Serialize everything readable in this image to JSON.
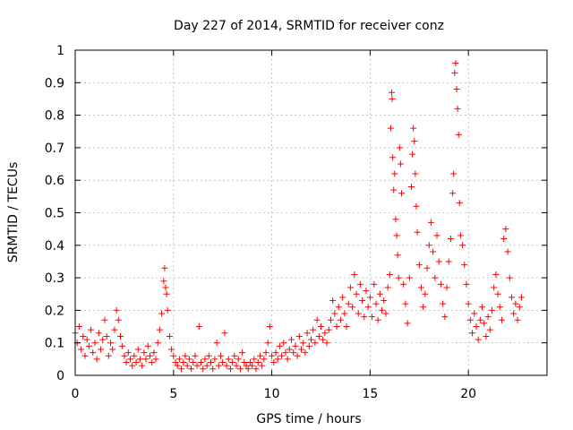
{
  "chart_data": {
    "type": "scatter",
    "title": "Day 227 of 2014, SRMTID for receiver conz",
    "xlabel": "GPS time / hours",
    "ylabel": "SRMTID / TECUs",
    "xlim": [
      0,
      24
    ],
    "ylim": [
      0,
      1
    ],
    "xticks": [
      0,
      5,
      10,
      15,
      20
    ],
    "xtick_labels": [
      "0",
      "5",
      "10",
      "15",
      "20"
    ],
    "yticks": [
      0,
      0.1,
      0.2,
      0.3,
      0.4,
      0.5,
      0.6,
      0.7,
      0.8,
      0.9,
      1
    ],
    "ytick_labels": [
      "0",
      "0.1",
      "0.2",
      "0.3",
      "0.4",
      "0.5",
      "0.6",
      "0.7",
      "0.8",
      "0.9",
      "1"
    ],
    "grid": true,
    "marker": "+",
    "marker_color": "#ff0000",
    "series": [
      {
        "name": "SRMTID",
        "points": [
          [
            0.0,
            0.13
          ],
          [
            0.1,
            0.1
          ],
          [
            0.2,
            0.15
          ],
          [
            0.3,
            0.08
          ],
          [
            0.4,
            0.12
          ],
          [
            0.5,
            0.06
          ],
          [
            0.6,
            0.11
          ],
          [
            0.7,
            0.09
          ],
          [
            0.8,
            0.14
          ],
          [
            0.9,
            0.07
          ],
          [
            1.0,
            0.1
          ],
          [
            1.1,
            0.05
          ],
          [
            1.2,
            0.13
          ],
          [
            1.3,
            0.08
          ],
          [
            1.4,
            0.11
          ],
          [
            1.5,
            0.17
          ],
          [
            1.6,
            0.12
          ],
          [
            1.7,
            0.06
          ],
          [
            1.8,
            0.1
          ],
          [
            1.9,
            0.08
          ],
          [
            2.0,
            0.14
          ],
          [
            2.1,
            0.2
          ],
          [
            2.2,
            0.17
          ],
          [
            2.3,
            0.12
          ],
          [
            2.4,
            0.09
          ],
          [
            2.5,
            0.06
          ],
          [
            2.6,
            0.04
          ],
          [
            2.7,
            0.07
          ],
          [
            2.8,
            0.05
          ],
          [
            2.9,
            0.03
          ],
          [
            3.0,
            0.06
          ],
          [
            3.1,
            0.04
          ],
          [
            3.2,
            0.08
          ],
          [
            3.3,
            0.05
          ],
          [
            3.4,
            0.03
          ],
          [
            3.5,
            0.07
          ],
          [
            3.6,
            0.05
          ],
          [
            3.7,
            0.09
          ],
          [
            3.8,
            0.06
          ],
          [
            3.9,
            0.04
          ],
          [
            4.0,
            0.07
          ],
          [
            4.1,
            0.05
          ],
          [
            4.2,
            0.1
          ],
          [
            4.3,
            0.14
          ],
          [
            4.4,
            0.19
          ],
          [
            4.5,
            0.29
          ],
          [
            4.55,
            0.33
          ],
          [
            4.6,
            0.27
          ],
          [
            4.65,
            0.25
          ],
          [
            4.7,
            0.2
          ],
          [
            4.8,
            0.12
          ],
          [
            4.9,
            0.08
          ],
          [
            5.0,
            0.06
          ],
          [
            5.1,
            0.04
          ],
          [
            5.2,
            0.03
          ],
          [
            5.3,
            0.05
          ],
          [
            5.4,
            0.02
          ],
          [
            5.5,
            0.04
          ],
          [
            5.6,
            0.06
          ],
          [
            5.7,
            0.03
          ],
          [
            5.8,
            0.05
          ],
          [
            5.9,
            0.02
          ],
          [
            6.0,
            0.04
          ],
          [
            6.1,
            0.06
          ],
          [
            6.2,
            0.03
          ],
          [
            6.3,
            0.15
          ],
          [
            6.4,
            0.04
          ],
          [
            6.5,
            0.02
          ],
          [
            6.6,
            0.05
          ],
          [
            6.7,
            0.03
          ],
          [
            6.8,
            0.06
          ],
          [
            6.9,
            0.04
          ],
          [
            7.0,
            0.02
          ],
          [
            7.1,
            0.05
          ],
          [
            7.2,
            0.1
          ],
          [
            7.3,
            0.03
          ],
          [
            7.4,
            0.06
          ],
          [
            7.5,
            0.04
          ],
          [
            7.6,
            0.13
          ],
          [
            7.7,
            0.03
          ],
          [
            7.8,
            0.05
          ],
          [
            7.9,
            0.02
          ],
          [
            8.0,
            0.04
          ],
          [
            8.1,
            0.06
          ],
          [
            8.2,
            0.03
          ],
          [
            8.3,
            0.05
          ],
          [
            8.4,
            0.02
          ],
          [
            8.5,
            0.07
          ],
          [
            8.6,
            0.04
          ],
          [
            8.7,
            0.03
          ],
          [
            8.8,
            0.02
          ],
          [
            8.9,
            0.04
          ],
          [
            9.0,
            0.03
          ],
          [
            9.1,
            0.05
          ],
          [
            9.2,
            0.02
          ],
          [
            9.3,
            0.04
          ],
          [
            9.4,
            0.06
          ],
          [
            9.5,
            0.03
          ],
          [
            9.6,
            0.05
          ],
          [
            9.7,
            0.07
          ],
          [
            9.8,
            0.1
          ],
          [
            9.9,
            0.15
          ],
          [
            10.0,
            0.06
          ],
          [
            10.1,
            0.04
          ],
          [
            10.2,
            0.07
          ],
          [
            10.3,
            0.05
          ],
          [
            10.4,
            0.09
          ],
          [
            10.5,
            0.06
          ],
          [
            10.6,
            0.1
          ],
          [
            10.7,
            0.07
          ],
          [
            10.8,
            0.05
          ],
          [
            10.9,
            0.08
          ],
          [
            11.0,
            0.11
          ],
          [
            11.1,
            0.07
          ],
          [
            11.2,
            0.09
          ],
          [
            11.3,
            0.06
          ],
          [
            11.4,
            0.12
          ],
          [
            11.5,
            0.08
          ],
          [
            11.6,
            0.1
          ],
          [
            11.7,
            0.07
          ],
          [
            11.8,
            0.13
          ],
          [
            11.9,
            0.09
          ],
          [
            12.0,
            0.11
          ],
          [
            12.1,
            0.14
          ],
          [
            12.2,
            0.1
          ],
          [
            12.3,
            0.17
          ],
          [
            12.4,
            0.12
          ],
          [
            12.5,
            0.15
          ],
          [
            12.6,
            0.11
          ],
          [
            12.7,
            0.13
          ],
          [
            12.8,
            0.1
          ],
          [
            12.9,
            0.14
          ],
          [
            13.0,
            0.17
          ],
          [
            13.1,
            0.23
          ],
          [
            13.2,
            0.19
          ],
          [
            13.3,
            0.15
          ],
          [
            13.4,
            0.21
          ],
          [
            13.5,
            0.17
          ],
          [
            13.6,
            0.24
          ],
          [
            13.7,
            0.19
          ],
          [
            13.8,
            0.15
          ],
          [
            13.9,
            0.22
          ],
          [
            14.0,
            0.27
          ],
          [
            14.1,
            0.21
          ],
          [
            14.2,
            0.31
          ],
          [
            14.3,
            0.25
          ],
          [
            14.4,
            0.19
          ],
          [
            14.5,
            0.28
          ],
          [
            14.6,
            0.23
          ],
          [
            14.7,
            0.18
          ],
          [
            14.8,
            0.26
          ],
          [
            14.9,
            0.21
          ],
          [
            15.0,
            0.24
          ],
          [
            15.1,
            0.18
          ],
          [
            15.2,
            0.28
          ],
          [
            15.3,
            0.22
          ],
          [
            15.4,
            0.17
          ],
          [
            15.5,
            0.25
          ],
          [
            15.6,
            0.2
          ],
          [
            15.7,
            0.23
          ],
          [
            15.8,
            0.19
          ],
          [
            15.9,
            0.27
          ],
          [
            16.0,
            0.31
          ],
          [
            16.05,
            0.76
          ],
          [
            16.1,
            0.87
          ],
          [
            16.12,
            0.85
          ],
          [
            16.15,
            0.67
          ],
          [
            16.2,
            0.57
          ],
          [
            16.25,
            0.62
          ],
          [
            16.3,
            0.48
          ],
          [
            16.35,
            0.43
          ],
          [
            16.4,
            0.37
          ],
          [
            16.45,
            0.3
          ],
          [
            16.5,
            0.7
          ],
          [
            16.55,
            0.65
          ],
          [
            16.6,
            0.56
          ],
          [
            16.7,
            0.28
          ],
          [
            16.8,
            0.22
          ],
          [
            16.9,
            0.16
          ],
          [
            17.0,
            0.3
          ],
          [
            17.1,
            0.58
          ],
          [
            17.15,
            0.68
          ],
          [
            17.2,
            0.76
          ],
          [
            17.25,
            0.72
          ],
          [
            17.3,
            0.62
          ],
          [
            17.35,
            0.52
          ],
          [
            17.4,
            0.44
          ],
          [
            17.5,
            0.34
          ],
          [
            17.6,
            0.27
          ],
          [
            17.7,
            0.21
          ],
          [
            17.8,
            0.25
          ],
          [
            17.9,
            0.33
          ],
          [
            18.0,
            0.4
          ],
          [
            18.1,
            0.47
          ],
          [
            18.2,
            0.38
          ],
          [
            18.3,
            0.3
          ],
          [
            18.4,
            0.43
          ],
          [
            18.5,
            0.35
          ],
          [
            18.6,
            0.28
          ],
          [
            18.7,
            0.22
          ],
          [
            18.8,
            0.18
          ],
          [
            18.9,
            0.27
          ],
          [
            19.0,
            0.35
          ],
          [
            19.1,
            0.42
          ],
          [
            19.2,
            0.56
          ],
          [
            19.25,
            0.62
          ],
          [
            19.3,
            0.93
          ],
          [
            19.35,
            0.96
          ],
          [
            19.4,
            0.88
          ],
          [
            19.45,
            0.82
          ],
          [
            19.5,
            0.74
          ],
          [
            19.55,
            0.53
          ],
          [
            19.6,
            0.43
          ],
          [
            19.7,
            0.4
          ],
          [
            19.8,
            0.34
          ],
          [
            19.9,
            0.28
          ],
          [
            20.0,
            0.22
          ],
          [
            20.1,
            0.17
          ],
          [
            20.2,
            0.13
          ],
          [
            20.3,
            0.19
          ],
          [
            20.4,
            0.15
          ],
          [
            20.5,
            0.11
          ],
          [
            20.6,
            0.17
          ],
          [
            20.7,
            0.21
          ],
          [
            20.8,
            0.16
          ],
          [
            20.9,
            0.12
          ],
          [
            21.0,
            0.18
          ],
          [
            21.1,
            0.14
          ],
          [
            21.2,
            0.2
          ],
          [
            21.3,
            0.27
          ],
          [
            21.4,
            0.31
          ],
          [
            21.5,
            0.25
          ],
          [
            21.6,
            0.21
          ],
          [
            21.7,
            0.17
          ],
          [
            21.8,
            0.42
          ],
          [
            21.9,
            0.45
          ],
          [
            22.0,
            0.38
          ],
          [
            22.1,
            0.3
          ],
          [
            22.2,
            0.24
          ],
          [
            22.3,
            0.19
          ],
          [
            22.4,
            0.22
          ],
          [
            22.5,
            0.17
          ],
          [
            22.6,
            0.21
          ],
          [
            22.7,
            0.24
          ]
        ]
      }
    ]
  }
}
